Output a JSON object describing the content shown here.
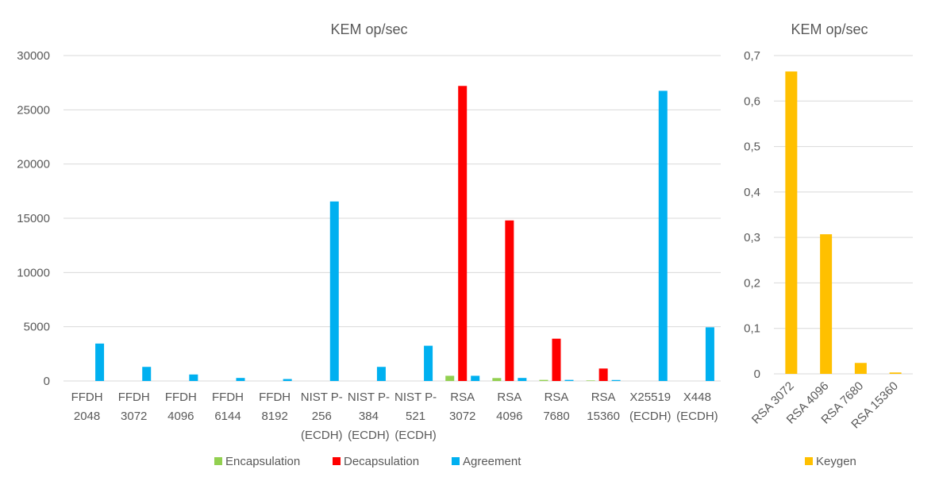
{
  "chart_data": [
    {
      "type": "bar",
      "title": "KEM op/sec",
      "xlabel": "",
      "ylabel": "",
      "ylim": [
        0,
        30000
      ],
      "yticks": [
        "0",
        "5000",
        "10000",
        "15000",
        "20000",
        "25000",
        "30000"
      ],
      "grid": true,
      "legend_position": "bottom",
      "categories": [
        [
          "FFDH",
          "2048"
        ],
        [
          "FFDH",
          "3072"
        ],
        [
          "FFDH",
          "4096"
        ],
        [
          "FFDH",
          "6144"
        ],
        [
          "FFDH",
          "8192"
        ],
        [
          "NIST P-",
          "256",
          "(ECDH)"
        ],
        [
          "NIST P-",
          "384",
          "(ECDH)"
        ],
        [
          "NIST P-",
          "521",
          "(ECDH)"
        ],
        [
          "RSA",
          "3072"
        ],
        [
          "RSA",
          "4096"
        ],
        [
          "RSA",
          "7680"
        ],
        [
          "RSA",
          "15360"
        ],
        [
          "X25519",
          "(ECDH)"
        ],
        [
          "X448",
          "(ECDH)"
        ]
      ],
      "series": [
        {
          "name": "Encapsulation",
          "color": "#92d050",
          "values": [
            0,
            0,
            0,
            0,
            0,
            0,
            0,
            0,
            480,
            270,
            100,
            50,
            0,
            0
          ]
        },
        {
          "name": "Decapsulation",
          "color": "#ff0000",
          "values": [
            0,
            0,
            0,
            0,
            0,
            0,
            0,
            0,
            27200,
            14800,
            3900,
            1150,
            0,
            0
          ]
        },
        {
          "name": "Agreement",
          "color": "#00b0f0",
          "values": [
            3450,
            1300,
            600,
            280,
            180,
            16550,
            1300,
            3250,
            480,
            280,
            100,
            90,
            26750,
            4950
          ]
        }
      ]
    },
    {
      "type": "bar",
      "title": "KEM op/sec",
      "xlabel": "",
      "ylabel": "",
      "ylim": [
        0,
        0.7
      ],
      "yticks": [
        "0",
        "0,1",
        "0,2",
        "0,3",
        "0,4",
        "0,5",
        "0,6",
        "0,7"
      ],
      "grid": true,
      "legend_position": "bottom",
      "categories": [
        "RSA 3072",
        "RSA 4096",
        "RSA 7680",
        "RSA 15360"
      ],
      "series": [
        {
          "name": "Keygen",
          "color": "#ffc000",
          "values": [
            0.665,
            0.307,
            0.024,
            0.003
          ]
        }
      ]
    }
  ]
}
